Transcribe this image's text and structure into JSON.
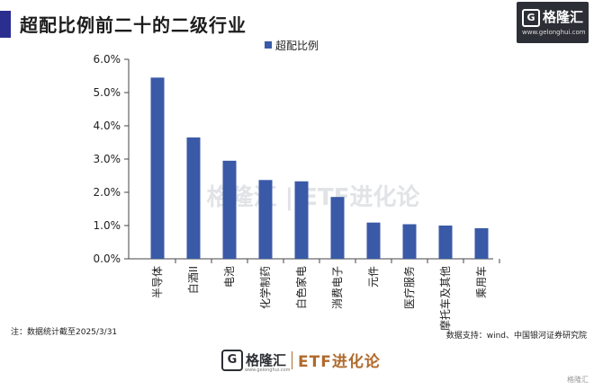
{
  "header": {
    "title": "超配比例前二十的二级行业",
    "logo_text": "格隆汇",
    "logo_url": "www.gelonghui.com"
  },
  "chart_data": {
    "type": "bar",
    "title": "超配比例前二十的二级行业",
    "categories": [
      "半导体",
      "白酒II",
      "电池",
      "化学制药",
      "白色家电",
      "消费电子",
      "元件",
      "医疗服务",
      "摩托车及其他",
      "乘用车"
    ],
    "series": [
      {
        "name": "超配比例",
        "values": [
          5.45,
          3.65,
          2.95,
          2.37,
          2.33,
          1.86,
          1.09,
          1.04,
          1.0,
          0.92
        ],
        "color": "#3a5aa8"
      }
    ],
    "yticks": [
      "0.0%",
      "1.0%",
      "2.0%",
      "3.0%",
      "4.0%",
      "5.0%",
      "6.0%"
    ],
    "ylim": [
      0,
      6
    ],
    "xlabel": "",
    "ylabel": "",
    "grid": false,
    "legend_position": "top-center",
    "watermark": "格隆汇 | ETF进化论"
  },
  "footer": {
    "note": "注：数据统计截至2025/3/31",
    "source": "数据支持：wind、中国银河证券研究院",
    "brand_cn": "格隆汇",
    "brand_etf": "ETF进化论",
    "brand_url": "www.gelonghui.com",
    "corner_mark": "格隆汇"
  }
}
